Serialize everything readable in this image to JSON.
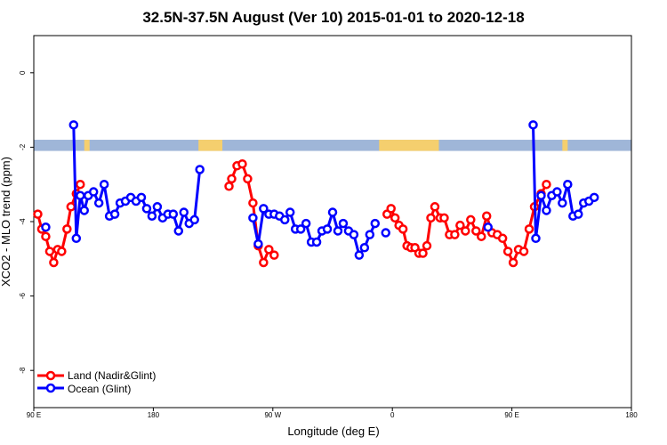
{
  "chart_data": {
    "type": "line",
    "title": "32.5N-37.5N August (Ver 10)   2015-01-01 to 2020-12-18",
    "xlabel": "Longitude (deg E)",
    "ylabel": "XCO2 - MLO trend (ppm)",
    "xlim": [
      90,
      540
    ],
    "ylim": [
      -9,
      1
    ],
    "x_ticks": [
      {
        "value": 90,
        "label": "90 E"
      },
      {
        "value": 180,
        "label": "180"
      },
      {
        "value": 270,
        "label": "90 W"
      },
      {
        "value": 360,
        "label": "0"
      },
      {
        "value": 450,
        "label": "90 E"
      },
      {
        "value": 540,
        "label": "180"
      }
    ],
    "y_ticks": [
      {
        "value": 0,
        "label": "0"
      },
      {
        "value": -2,
        "label": "-2"
      },
      {
        "value": -4,
        "label": "-4"
      },
      {
        "value": -6,
        "label": "-6"
      },
      {
        "value": -8,
        "label": "-8"
      }
    ],
    "grid": false,
    "legend_position": "bottom-left",
    "land_strip": {
      "y_range": [
        -1.8,
        -2.1
      ],
      "ocean_color": "#9fb6d8",
      "land_color": "#f5cf6e",
      "land_segments": [
        [
          128,
          132
        ],
        [
          214,
          232
        ],
        [
          350,
          395
        ],
        [
          488,
          492
        ]
      ]
    },
    "series": [
      {
        "name": "Land (Nadir&Glint)",
        "color": "#ff0000",
        "segments": [
          [
            [
              93,
              -3.8
            ],
            [
              96,
              -4.2
            ],
            [
              99,
              -4.4
            ],
            [
              102,
              -4.8
            ],
            [
              105,
              -5.1
            ],
            [
              108,
              -4.75
            ],
            [
              111,
              -4.8
            ],
            [
              115,
              -4.2
            ],
            [
              118,
              -3.6
            ],
            [
              122,
              -3.25
            ],
            [
              125,
              -3.0
            ]
          ],
          [
            [
              237,
              -3.05
            ],
            [
              239,
              -2.85
            ],
            [
              243,
              -2.5
            ],
            [
              247,
              -2.45
            ],
            [
              251,
              -2.85
            ],
            [
              255,
              -3.5
            ],
            [
              259,
              -4.65
            ],
            [
              263,
              -5.1
            ],
            [
              267,
              -4.75
            ],
            [
              271,
              -4.9
            ]
          ],
          [
            [
              356,
              -3.8
            ],
            [
              359,
              -3.65
            ],
            [
              362,
              -3.9
            ],
            [
              365,
              -4.1
            ],
            [
              368,
              -4.2
            ],
            [
              371,
              -4.65
            ],
            [
              374,
              -4.7
            ],
            [
              377,
              -4.7
            ],
            [
              380,
              -4.85
            ],
            [
              383,
              -4.85
            ],
            [
              386,
              -4.65
            ],
            [
              389,
              -3.9
            ],
            [
              392,
              -3.6
            ],
            [
              396,
              -3.9
            ],
            [
              399,
              -3.9
            ],
            [
              403,
              -4.35
            ],
            [
              407,
              -4.35
            ],
            [
              411,
              -4.1
            ],
            [
              415,
              -4.25
            ],
            [
              419,
              -3.95
            ],
            [
              423,
              -4.25
            ],
            [
              427,
              -4.4
            ],
            [
              431,
              -3.85
            ],
            [
              435,
              -4.3
            ],
            [
              439,
              -4.35
            ],
            [
              443,
              -4.45
            ],
            [
              447,
              -4.8
            ],
            [
              451,
              -5.1
            ],
            [
              455,
              -4.75
            ],
            [
              459,
              -4.8
            ],
            [
              463,
              -4.2
            ],
            [
              467,
              -3.6
            ],
            [
              472,
              -3.25
            ],
            [
              476,
              -3.0
            ]
          ]
        ]
      },
      {
        "name": "Ocean (Glint)",
        "color": "#0000ff",
        "segments": [
          [
            [
              99,
              -4.15
            ]
          ],
          [
            [
              120,
              -1.4
            ],
            [
              122,
              -4.45
            ],
            [
              125,
              -3.3
            ],
            [
              128,
              -3.7
            ],
            [
              131,
              -3.3
            ],
            [
              135,
              -3.2
            ],
            [
              139,
              -3.5
            ],
            [
              143,
              -3.0
            ],
            [
              147,
              -3.85
            ],
            [
              151,
              -3.8
            ],
            [
              155,
              -3.5
            ],
            [
              159,
              -3.45
            ],
            [
              163,
              -3.35
            ],
            [
              167,
              -3.45
            ],
            [
              171,
              -3.35
            ],
            [
              175,
              -3.65
            ],
            [
              179,
              -3.85
            ],
            [
              183,
              -3.6
            ],
            [
              187,
              -3.9
            ],
            [
              191,
              -3.8
            ],
            [
              195,
              -3.8
            ],
            [
              199,
              -4.25
            ],
            [
              203,
              -3.75
            ],
            [
              207,
              -4.05
            ],
            [
              211,
              -3.95
            ],
            [
              215,
              -2.6
            ]
          ],
          [
            [
              255,
              -3.9
            ],
            [
              259,
              -4.6
            ],
            [
              263,
              -3.65
            ],
            [
              267,
              -3.8
            ],
            [
              271,
              -3.8
            ],
            [
              275,
              -3.85
            ],
            [
              279,
              -3.95
            ],
            [
              283,
              -3.75
            ],
            [
              287,
              -4.2
            ],
            [
              291,
              -4.2
            ],
            [
              295,
              -4.05
            ],
            [
              299,
              -4.55
            ],
            [
              303,
              -4.55
            ],
            [
              307,
              -4.25
            ],
            [
              311,
              -4.2
            ],
            [
              315,
              -3.75
            ],
            [
              319,
              -4.25
            ],
            [
              323,
              -4.05
            ],
            [
              327,
              -4.25
            ],
            [
              331,
              -4.35
            ],
            [
              335,
              -4.9
            ],
            [
              339,
              -4.7
            ],
            [
              343,
              -4.35
            ],
            [
              347,
              -4.05
            ]
          ],
          [
            [
              355,
              -4.3
            ]
          ],
          [
            [
              432,
              -4.15
            ]
          ],
          [
            [
              466,
              -1.4
            ],
            [
              468,
              -4.45
            ],
            [
              472,
              -3.3
            ],
            [
              476,
              -3.7
            ],
            [
              480,
              -3.3
            ],
            [
              484,
              -3.2
            ],
            [
              488,
              -3.5
            ],
            [
              492,
              -3.0
            ],
            [
              496,
              -3.85
            ],
            [
              500,
              -3.8
            ],
            [
              504,
              -3.5
            ],
            [
              508,
              -3.45
            ],
            [
              512,
              -3.35
            ]
          ]
        ]
      }
    ]
  }
}
